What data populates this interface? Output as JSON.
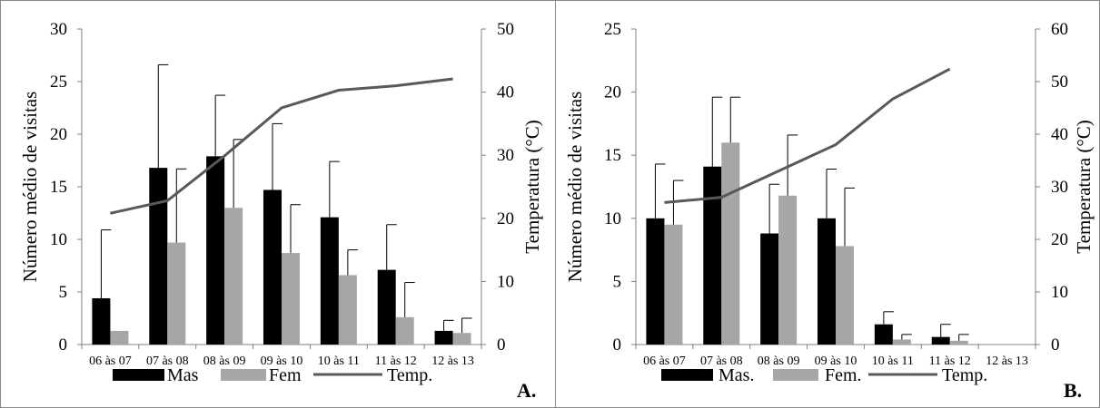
{
  "colors": {
    "male": "#000000",
    "female": "#a6a6a6",
    "temperature": "#595959",
    "axis": "#808080",
    "border": "#888888"
  },
  "chart_data": [
    {
      "id": "A",
      "type": "bar",
      "panel_label": "A.",
      "categories": [
        "06 às 07",
        "07 às 08",
        "08 às 09",
        "09 às 10",
        "10 às 11",
        "11 às 12",
        "12 às 13"
      ],
      "ylabel": "Número médio de visitas",
      "y2label": "Temperatura (°C)",
      "ylim": [
        0,
        30
      ],
      "yticks": [
        0,
        5,
        10,
        15,
        20,
        25,
        30
      ],
      "y2lim": [
        0,
        50
      ],
      "y2ticks": [
        0,
        10,
        20,
        30,
        40,
        50
      ],
      "series": [
        {
          "name": "Mas",
          "kind": "bar",
          "color": "#000000",
          "values": [
            4.4,
            16.8,
            17.9,
            14.7,
            12.1,
            7.1,
            1.3
          ],
          "errors": [
            6.5,
            9.8,
            5.8,
            6.3,
            5.3,
            4.3,
            1.0
          ]
        },
        {
          "name": "Fem",
          "kind": "bar",
          "color": "#a6a6a6",
          "values": [
            1.3,
            9.7,
            13.0,
            8.7,
            6.6,
            2.6,
            1.1
          ],
          "errors": [
            0,
            7.0,
            6.5,
            4.6,
            2.4,
            3.3,
            1.4
          ]
        },
        {
          "name": "Temp.",
          "kind": "line",
          "axis": "right",
          "color": "#595959",
          "values": [
            20.8,
            22.8,
            29.9,
            37.5,
            40.3,
            41.0,
            42.1
          ]
        }
      ],
      "legend_position": "bottom"
    },
    {
      "id": "B",
      "type": "bar",
      "panel_label": "B.",
      "categories": [
        "06 às 07",
        "07 às 08",
        "08 às 09",
        "09 às 10",
        "10 às 11",
        "11 às 12",
        "12 às 13"
      ],
      "ylabel": "Número médio de visitas",
      "y2label": "Temperatura (°C)",
      "ylim": [
        0,
        25
      ],
      "yticks": [
        0,
        5,
        10,
        15,
        20,
        25
      ],
      "y2lim": [
        0,
        60
      ],
      "y2ticks": [
        0,
        10,
        20,
        30,
        40,
        50,
        60
      ],
      "series": [
        {
          "name": "Mas.",
          "kind": "bar",
          "color": "#000000",
          "values": [
            10.0,
            14.1,
            8.8,
            10.0,
            1.6,
            0.6,
            0
          ],
          "errors": [
            4.3,
            5.5,
            3.9,
            3.9,
            1.0,
            1.0,
            0
          ]
        },
        {
          "name": "Fem.",
          "kind": "bar",
          "color": "#a6a6a6",
          "values": [
            9.5,
            16.0,
            11.8,
            7.8,
            0.4,
            0.3,
            0
          ],
          "errors": [
            3.5,
            3.6,
            4.8,
            4.6,
            0.4,
            0.5,
            0
          ]
        },
        {
          "name": "Temp.",
          "kind": "line",
          "axis": "right",
          "color": "#595959",
          "values": [
            27.0,
            28.0,
            33.0,
            38.0,
            46.7,
            52.4,
            null
          ]
        }
      ],
      "legend_position": "bottom"
    }
  ]
}
